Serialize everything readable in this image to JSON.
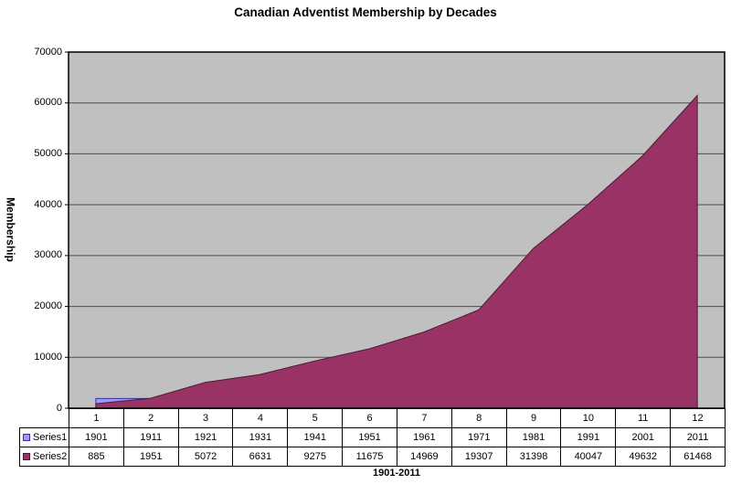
{
  "chart_data": {
    "type": "area",
    "title": "Canadian Adventist Membership by Decades",
    "ylabel": "Membership",
    "xlabel": "1901-2011",
    "categories": [
      "1",
      "2",
      "3",
      "4",
      "5",
      "6",
      "7",
      "8",
      "9",
      "10",
      "11",
      "12"
    ],
    "series": [
      {
        "name": "Series1",
        "values": [
          1901,
          1911,
          1921,
          1931,
          1941,
          1951,
          1961,
          1971,
          1981,
          1991,
          2001,
          2011
        ],
        "fill": "#9999FF",
        "border": "#333399"
      },
      {
        "name": "Series2",
        "values": [
          885,
          1951,
          5072,
          6631,
          9275,
          11675,
          14969,
          19307,
          31398,
          40047,
          49632,
          61468
        ],
        "fill": "#993366",
        "border": "#4D1A34"
      }
    ],
    "ylim": [
      0,
      70000
    ],
    "ytick_step": 10000,
    "yticks": [
      "0",
      "10000",
      "20000",
      "30000",
      "40000",
      "50000",
      "60000",
      "70000"
    ],
    "legend_position": "table-left",
    "grid": true,
    "colors": {
      "plot_background": "#C0C0C0",
      "gridline": "#4D4D4D",
      "plot_border": "#000000",
      "page_background": "#FFFFFF"
    }
  }
}
